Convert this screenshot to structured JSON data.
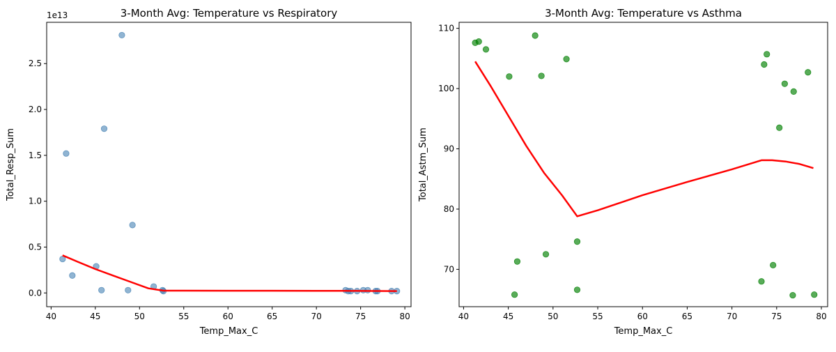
{
  "chart_data": [
    {
      "type": "scatter",
      "title": "3-Month Avg: Temperature vs Respiratory",
      "xlabel": "Temp_Max_C",
      "ylabel": "Total_Resp_Sum",
      "y_offset_label": "1e13",
      "xlim": [
        39.5,
        80.7
      ],
      "ylim": [
        -0.15,
        2.95
      ],
      "xticks": [
        40,
        45,
        50,
        55,
        60,
        65,
        70,
        75,
        80
      ],
      "yticks": [
        0.0,
        0.5,
        1.0,
        1.5,
        2.0,
        2.5
      ],
      "ytick_labels": [
        "0.0",
        "0.5",
        "1.0",
        "1.5",
        "2.0",
        "2.5"
      ],
      "grid": false,
      "colors": {
        "points": "#4682B4",
        "trend": "#FF0000"
      },
      "series": [
        {
          "kind": "points",
          "x": [
            41.3,
            41.7,
            42.4,
            45.1,
            45.7,
            46.0,
            48.0,
            48.7,
            49.2,
            51.6,
            52.6,
            52.7,
            73.3,
            73.6,
            73.9,
            74.6,
            75.3,
            75.8,
            76.7,
            76.9,
            78.5,
            79.1
          ],
          "y": [
            0.37,
            1.52,
            0.19,
            0.29,
            0.03,
            1.79,
            2.81,
            0.03,
            0.74,
            0.07,
            0.03,
            0.02,
            0.03,
            0.02,
            0.02,
            0.02,
            0.03,
            0.03,
            0.02,
            0.02,
            0.02,
            0.02
          ]
        },
        {
          "kind": "trend",
          "x": [
            41.3,
            43.0,
            45.0,
            47.0,
            49.0,
            51.0,
            52.7,
            55.0,
            60.0,
            65.0,
            70.0,
            73.3,
            75.0,
            77.0,
            79.1
          ],
          "y": [
            0.41,
            0.34,
            0.26,
            0.19,
            0.12,
            0.05,
            0.025,
            0.025,
            0.024,
            0.024,
            0.023,
            0.023,
            0.022,
            0.021,
            0.02
          ]
        }
      ]
    },
    {
      "type": "scatter",
      "title": "3-Month Avg: Temperature vs Asthma",
      "xlabel": "Temp_Max_C",
      "ylabel": "Total_Astm_Sum",
      "xlim": [
        39.5,
        80.7
      ],
      "ylim": [
        63.8,
        111.0
      ],
      "xticks": [
        40,
        45,
        50,
        55,
        60,
        65,
        70,
        75,
        80
      ],
      "yticks": [
        70,
        80,
        90,
        100,
        110
      ],
      "ytick_labels": [
        "70",
        "80",
        "90",
        "100",
        "110"
      ],
      "grid": false,
      "colors": {
        "points": "#008000",
        "trend": "#FF0000"
      },
      "series": [
        {
          "kind": "points",
          "x": [
            41.3,
            41.7,
            42.5,
            45.1,
            45.7,
            46.0,
            48.0,
            48.7,
            49.2,
            51.5,
            52.7,
            52.7,
            73.3,
            73.6,
            73.9,
            74.6,
            75.3,
            75.9,
            76.8,
            76.9,
            78.5,
            79.2
          ],
          "y": [
            107.6,
            107.8,
            106.5,
            102.0,
            65.8,
            71.3,
            108.8,
            102.1,
            72.5,
            104.9,
            74.6,
            66.6,
            68.0,
            104.0,
            105.7,
            70.7,
            93.5,
            100.8,
            65.7,
            99.5,
            102.7,
            65.8
          ]
        },
        {
          "kind": "trend",
          "x": [
            41.3,
            43.0,
            45.0,
            47.0,
            49.0,
            51.0,
            52.7,
            55.0,
            60.0,
            65.0,
            70.0,
            73.3,
            74.5,
            76.0,
            77.5,
            79.1
          ],
          "y": [
            104.5,
            100.5,
            95.5,
            90.5,
            86.0,
            82.3,
            78.8,
            79.8,
            82.3,
            84.5,
            86.6,
            88.1,
            88.1,
            87.9,
            87.5,
            86.8
          ]
        }
      ]
    }
  ]
}
